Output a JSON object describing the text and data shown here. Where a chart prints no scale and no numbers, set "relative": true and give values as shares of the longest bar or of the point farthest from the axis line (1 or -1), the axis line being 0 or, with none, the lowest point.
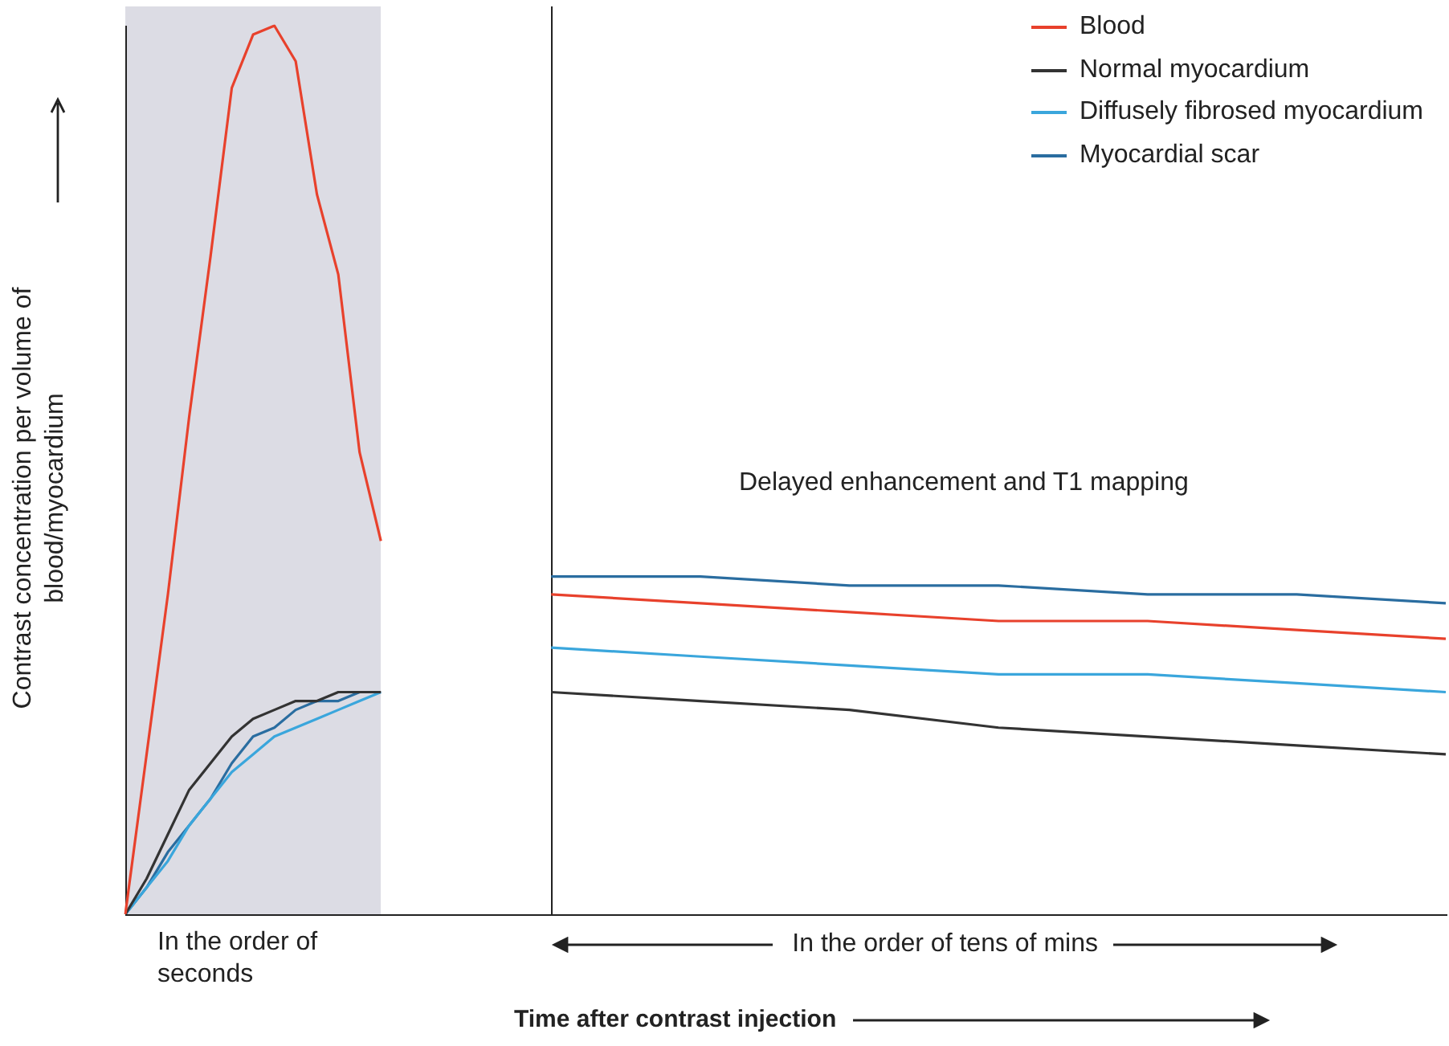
{
  "chart_data": {
    "type": "line",
    "relative": true,
    "ylabel": "Contrast concentration per volume of blood/myocardium",
    "categories": [
      null,
      null,
      null,
      null,
      null,
      null,
      null,
      null,
      null,
      null,
      null,
      null,
      null,
      null,
      null,
      null,
      null,
      null,
      null,
      null,
      null,
      null,
      null,
      null,
      null,
      null,
      null,
      null,
      null,
      null,
      null,
      null,
      null,
      null,
      null,
      null,
      null,
      null,
      null,
      null,
      null,
      null,
      null,
      null,
      null,
      null,
      null,
      null,
      null,
      null,
      null,
      null,
      null,
      null,
      null,
      null,
      null,
      null,
      null,
      null,
      null,
      null,
      null
    ],
    "series": [
      {
        "name": "Blood",
        "color": "#e8412c",
        "values": [
          0,
          0.18,
          0.36,
          0.56,
          0.74,
          0.93,
          0.99,
          1,
          0.96,
          0.81,
          0.72,
          0.52,
          0.42,
          null,
          null,
          null,
          null,
          null,
          null,
          null,
          null,
          null,
          null,
          null,
          null,
          null,
          null,
          null,
          null,
          null,
          null,
          null,
          null,
          null,
          null,
          null,
          null,
          null,
          null,
          null,
          null,
          null,
          null,
          null,
          null,
          null,
          null,
          null,
          null,
          null,
          null,
          null,
          null,
          null,
          null,
          null,
          null,
          null,
          null,
          null,
          null,
          null,
          null
        ]
      },
      {
        "name": "Normal myocardium",
        "color": "#333333",
        "values": [
          0,
          0.04,
          0.09,
          0.14,
          0.17,
          0.2,
          0.22,
          0.23,
          0.24,
          0.24,
          0.25,
          0.25,
          0.25,
          null,
          null,
          null,
          null,
          null,
          null,
          null,
          null,
          null,
          null,
          null,
          null,
          null,
          null,
          null,
          null,
          null,
          null,
          null,
          null,
          null,
          null,
          null,
          null,
          null,
          null,
          null,
          null,
          null,
          null,
          null,
          null,
          null,
          null,
          null,
          null,
          null,
          null,
          null,
          null,
          null,
          null,
          null,
          null,
          null,
          null,
          null,
          null,
          null,
          null
        ]
      },
      {
        "name": "Diffusely fibrosed myocardium",
        "color": "#3aa6dc",
        "values": [
          0,
          0.03,
          0.06,
          0.1,
          0.13,
          0.16,
          0.18,
          0.2,
          0.21,
          0.22,
          0.23,
          0.24,
          0.25,
          null,
          null,
          null,
          null,
          null,
          null,
          null,
          null,
          null,
          null,
          null,
          null,
          null,
          null,
          null,
          null,
          null,
          null,
          null,
          null,
          null,
          null,
          null,
          null,
          null,
          null,
          null,
          null,
          null,
          null,
          null,
          null,
          null,
          null,
          null,
          null,
          null,
          null,
          null,
          null,
          null,
          null,
          null,
          null,
          null,
          null,
          null,
          null,
          null,
          null
        ]
      },
      {
        "name": "Myocardial scar",
        "color": "#2a6da0",
        "values": [
          0,
          0.03,
          0.07,
          0.1,
          0.13,
          0.17,
          0.2,
          0.21,
          0.23,
          0.24,
          0.24,
          0.25,
          0.25,
          null,
          null,
          null,
          null,
          null,
          null,
          null,
          null,
          null,
          null,
          null,
          null,
          null,
          null,
          null,
          null,
          null,
          null,
          null,
          null,
          null,
          null,
          null,
          null,
          null,
          null,
          null,
          null,
          null,
          null,
          null,
          null,
          null,
          null,
          null,
          null,
          null,
          null,
          null,
          null,
          null,
          null,
          null,
          null,
          null,
          null,
          null,
          null,
          null,
          null
        ]
      },
      {
        "color": "#e8412c",
        "values": [
          null,
          null,
          null,
          null,
          null,
          null,
          null,
          null,
          null,
          null,
          null,
          null,
          null,
          null,
          null,
          null,
          null,
          null,
          null,
          null,
          0.36,
          null,
          null,
          null,
          null,
          null,
          null,
          0.35,
          null,
          null,
          null,
          null,
          null,
          null,
          0.34,
          null,
          null,
          null,
          null,
          null,
          null,
          0.33,
          null,
          null,
          null,
          null,
          null,
          null,
          0.33,
          null,
          null,
          null,
          null,
          null,
          null,
          0.32,
          null,
          null,
          null,
          null,
          null,
          null,
          0.31
        ]
      },
      {
        "color": "#333333",
        "values": [
          null,
          null,
          null,
          null,
          null,
          null,
          null,
          null,
          null,
          null,
          null,
          null,
          null,
          null,
          null,
          null,
          null,
          null,
          null,
          null,
          0.25,
          null,
          null,
          null,
          null,
          null,
          null,
          0.24,
          null,
          null,
          null,
          null,
          null,
          null,
          0.23,
          null,
          null,
          null,
          null,
          null,
          null,
          0.21,
          null,
          null,
          null,
          null,
          null,
          null,
          0.2,
          null,
          null,
          null,
          null,
          null,
          null,
          0.19,
          null,
          null,
          null,
          null,
          null,
          null,
          0.18
        ]
      },
      {
        "color": "#3aa6dc",
        "values": [
          null,
          null,
          null,
          null,
          null,
          null,
          null,
          null,
          null,
          null,
          null,
          null,
          null,
          null,
          null,
          null,
          null,
          null,
          null,
          null,
          0.3,
          null,
          null,
          null,
          null,
          null,
          null,
          0.29,
          null,
          null,
          null,
          null,
          null,
          null,
          0.28,
          null,
          null,
          null,
          null,
          null,
          null,
          0.27,
          null,
          null,
          null,
          null,
          null,
          null,
          0.27,
          null,
          null,
          null,
          null,
          null,
          null,
          0.26,
          null,
          null,
          null,
          null,
          null,
          null,
          0.25
        ]
      },
      {
        "color": "#2a6da0",
        "values": [
          null,
          null,
          null,
          null,
          null,
          null,
          null,
          null,
          null,
          null,
          null,
          null,
          null,
          null,
          null,
          null,
          null,
          null,
          null,
          null,
          0.38,
          null,
          null,
          null,
          null,
          null,
          null,
          0.38,
          null,
          null,
          null,
          null,
          null,
          null,
          0.37,
          null,
          null,
          null,
          null,
          null,
          null,
          0.37,
          null,
          null,
          null,
          null,
          null,
          null,
          0.36,
          null,
          null,
          null,
          null,
          null,
          null,
          0.36,
          null,
          null,
          null,
          null,
          null,
          null,
          0.35
        ]
      }
    ],
    "annotations": [
      "Delayed enhancement and T1 mapping",
      "In the order of seconds",
      "In the order of tens of mins",
      "Time after contrast injection"
    ],
    "legend": "top right",
    "grid": false,
    "marker": "none",
    "line_style": "solid"
  }
}
